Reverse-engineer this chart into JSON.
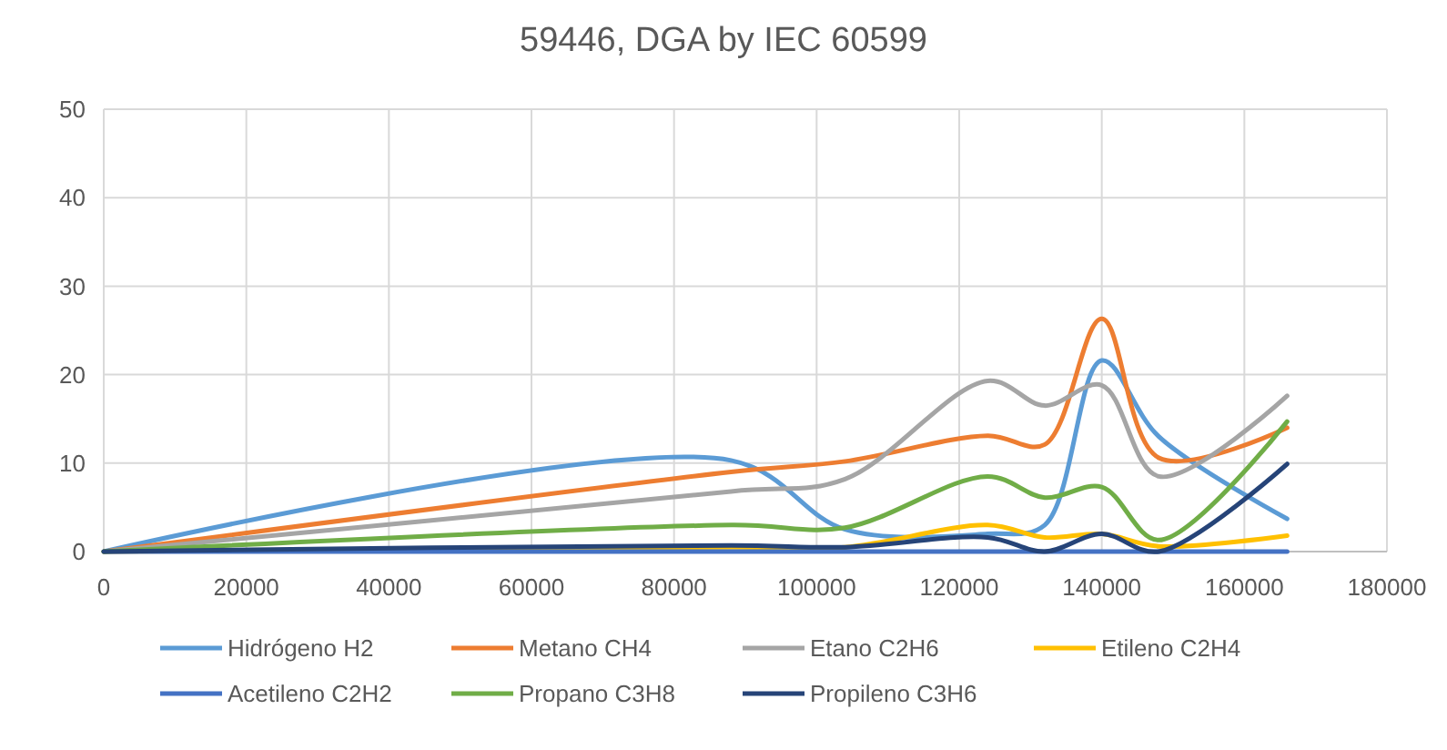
{
  "chart_data": {
    "type": "line",
    "title": "59446, DGA by IEC 60599",
    "x": [
      0,
      88000,
      104000,
      124000,
      132000,
      140000,
      148000,
      166000
    ],
    "series": [
      {
        "name": "Hidrógeno H2",
        "color": "#5b9bd5",
        "values": [
          0,
          10.3,
          2.5,
          2,
          3,
          21.6,
          13,
          3.7
        ]
      },
      {
        "name": "Metano CH4",
        "color": "#ed7d31",
        "values": [
          0,
          9,
          10.2,
          13.1,
          12.1,
          26.3,
          10.6,
          14
        ]
      },
      {
        "name": "Etano C2H6",
        "color": "#a5a5a5",
        "values": [
          0,
          6.8,
          8.2,
          19.3,
          16.5,
          18.8,
          8.5,
          17.6
        ]
      },
      {
        "name": "Etileno C2H4",
        "color": "#ffc000",
        "values": [
          0,
          0.5,
          0.5,
          3,
          1.6,
          2,
          0.6,
          1.8
        ]
      },
      {
        "name": "Acetileno C2H2",
        "color": "#4472c4",
        "values": [
          0,
          0,
          0,
          0,
          0,
          0,
          0,
          0
        ]
      },
      {
        "name": "Propano C3H8",
        "color": "#70ad47",
        "values": [
          0,
          3,
          2.7,
          8.5,
          6.1,
          7.3,
          1.3,
          14.7
        ]
      },
      {
        "name": "Propileno C3H6",
        "color": "#264478",
        "values": [
          0,
          0.7,
          0.5,
          1.6,
          0,
          2,
          0,
          9.9
        ]
      }
    ],
    "xlim": [
      0,
      180000
    ],
    "xticks": [
      0,
      20000,
      40000,
      60000,
      80000,
      100000,
      120000,
      140000,
      160000,
      180000
    ],
    "ylim": [
      0,
      50
    ],
    "yticks": [
      0,
      10,
      20,
      30,
      40,
      50
    ],
    "grid": true,
    "legend": "bottom",
    "marker": "none",
    "line_style": "solid"
  }
}
